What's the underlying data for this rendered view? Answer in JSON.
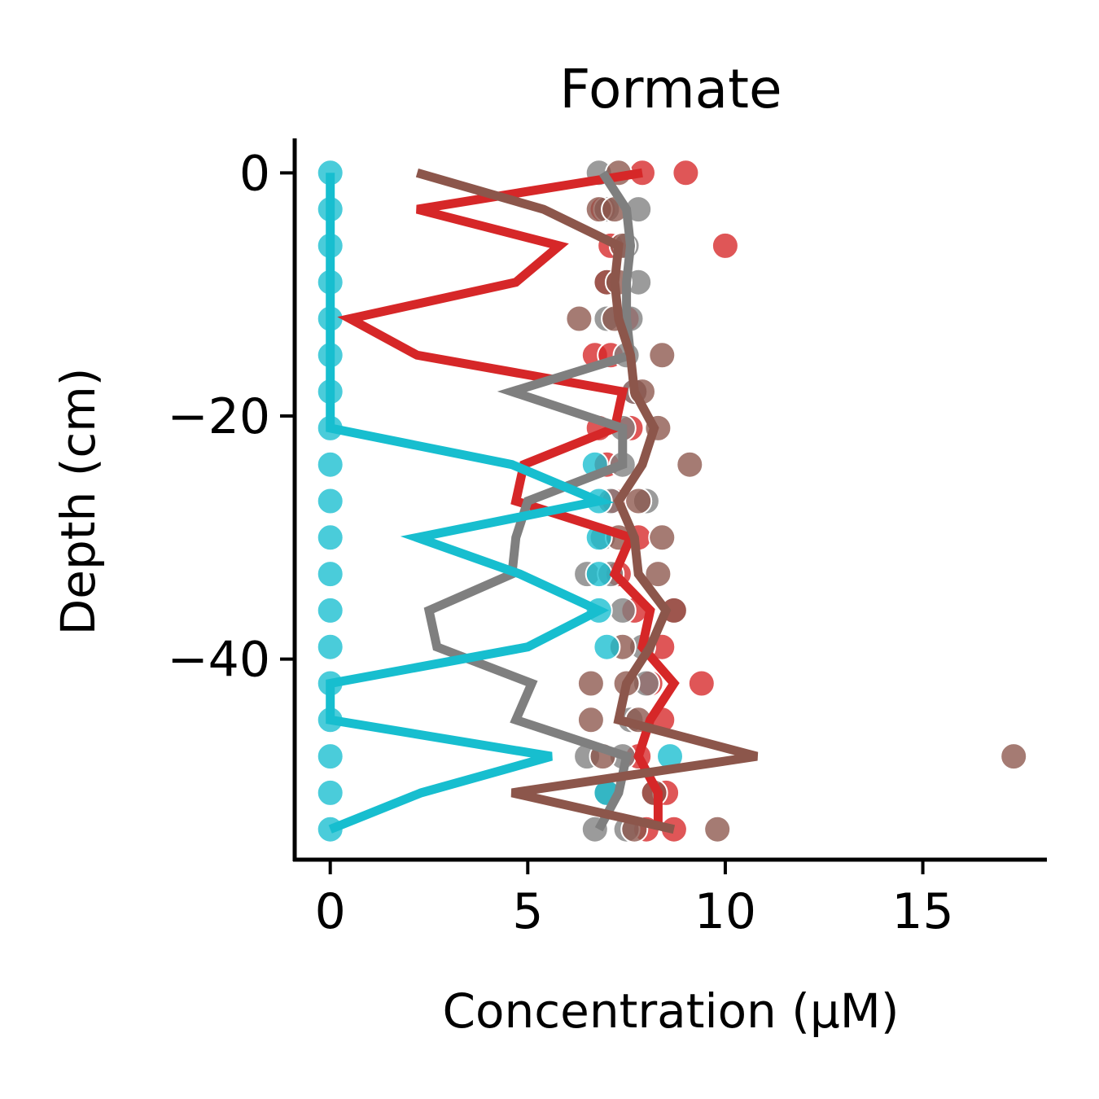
{
  "chart_data": {
    "type": "line",
    "title": "Formate",
    "xlabel": "Concentration (μM)",
    "ylabel": "Depth (cm)",
    "xlim": [
      -0.9,
      18.1
    ],
    "ylim": [
      -56.5,
      2.7
    ],
    "xticks": [
      0,
      5,
      10,
      15
    ],
    "yticks": [
      0,
      -20,
      -40
    ],
    "xtick_labels": [
      "0",
      "5",
      "10",
      "15"
    ],
    "ytick_labels": [
      "0",
      "−20",
      "−40"
    ],
    "grid": false,
    "legend": "none",
    "depths": [
      0,
      -3,
      -6,
      -9,
      -12,
      -15,
      -18,
      -21,
      -24,
      -27,
      -30,
      -33,
      -36,
      -39,
      -42,
      -45,
      -48,
      -51,
      -54
    ],
    "series": [
      {
        "color": "#d62728",
        "line": [
          7.9,
          2.2,
          5.8,
          4.7,
          0.5,
          2.2,
          7.4,
          7.2,
          4.9,
          4.7,
          7.6,
          7.2,
          8.1,
          7.9,
          8.7,
          8.1,
          7.8,
          8.3,
          8.3
        ],
        "points": [
          [
            7.9,
            0
          ],
          [
            9.0,
            0
          ],
          [
            6.9,
            -3
          ],
          [
            10.0,
            -6
          ],
          [
            7.1,
            -6
          ],
          [
            7.0,
            -9
          ],
          [
            7.5,
            -12
          ],
          [
            6.7,
            -15
          ],
          [
            7.1,
            -15
          ],
          [
            7.7,
            -18
          ],
          [
            6.8,
            -21
          ],
          [
            7.6,
            -21
          ],
          [
            7.0,
            -24
          ],
          [
            7.2,
            -27
          ],
          [
            7.8,
            -30
          ],
          [
            7.3,
            -33
          ],
          [
            7.7,
            -36
          ],
          [
            8.7,
            -36
          ],
          [
            8.4,
            -39
          ],
          [
            8.1,
            -42
          ],
          [
            9.4,
            -42
          ],
          [
            8.4,
            -45
          ],
          [
            7.8,
            -48
          ],
          [
            8.2,
            -51
          ],
          [
            8.5,
            -51
          ],
          [
            8.7,
            -54
          ],
          [
            8.0,
            -54
          ]
        ]
      },
      {
        "color": "#7f7f7f",
        "line": [
          6.9,
          7.5,
          7.6,
          7.5,
          7.5,
          7.6,
          4.6,
          7.4,
          7.4,
          5.0,
          4.7,
          4.6,
          2.5,
          2.7,
          5.1,
          4.7,
          7.5,
          7.3,
          6.8
        ],
        "points": [
          [
            6.8,
            0
          ],
          [
            7.0,
            -3
          ],
          [
            7.8,
            -3
          ],
          [
            7.5,
            -6
          ],
          [
            7.8,
            -9
          ],
          [
            7.0,
            -12
          ],
          [
            7.6,
            -12
          ],
          [
            7.5,
            -15
          ],
          [
            7.7,
            -18
          ],
          [
            7.4,
            -21
          ],
          [
            7.4,
            -24
          ],
          [
            8.0,
            -27
          ],
          [
            7.1,
            -27
          ],
          [
            6.9,
            -30
          ],
          [
            6.5,
            -33
          ],
          [
            7.1,
            -33
          ],
          [
            7.4,
            -36
          ],
          [
            7.9,
            -39
          ],
          [
            8.0,
            -42
          ],
          [
            7.6,
            -45
          ],
          [
            6.5,
            -48
          ],
          [
            7.4,
            -48
          ],
          [
            7.0,
            -51
          ],
          [
            6.7,
            -54
          ],
          [
            7.5,
            -54
          ]
        ]
      },
      {
        "color": "#8c564b",
        "line": [
          2.2,
          5.4,
          7.3,
          7.2,
          7.3,
          7.6,
          7.7,
          8.2,
          7.9,
          7.3,
          7.7,
          7.8,
          8.5,
          8.1,
          7.5,
          7.3,
          10.8,
          4.6,
          8.7
        ],
        "points": [
          [
            7.3,
            0
          ],
          [
            6.8,
            -3
          ],
          [
            7.2,
            -3
          ],
          [
            7.4,
            -6
          ],
          [
            7.0,
            -9
          ],
          [
            7.3,
            -9
          ],
          [
            6.3,
            -12
          ],
          [
            7.2,
            -12
          ],
          [
            8.4,
            -15
          ],
          [
            7.9,
            -18
          ],
          [
            8.3,
            -21
          ],
          [
            9.1,
            -24
          ],
          [
            7.8,
            -27
          ],
          [
            8.4,
            -30
          ],
          [
            7.3,
            -30
          ],
          [
            8.3,
            -33
          ],
          [
            8.7,
            -36
          ],
          [
            7.4,
            -39
          ],
          [
            6.6,
            -42
          ],
          [
            7.5,
            -42
          ],
          [
            6.6,
            -45
          ],
          [
            7.8,
            -45
          ],
          [
            17.3,
            -48
          ],
          [
            6.9,
            -48
          ],
          [
            8.2,
            -51
          ],
          [
            9.8,
            -54
          ],
          [
            7.7,
            -54
          ]
        ]
      },
      {
        "color": "#17becf",
        "line": [
          0,
          0,
          0,
          0,
          0,
          0,
          0,
          0,
          4.6,
          6.8,
          2.2,
          4.8,
          6.8,
          5.0,
          0,
          0,
          5.6,
          2.3,
          0
        ],
        "points": [
          [
            0,
            0
          ],
          [
            0,
            -3
          ],
          [
            0,
            -6
          ],
          [
            0,
            -9
          ],
          [
            0,
            -12
          ],
          [
            0,
            -15
          ],
          [
            0,
            -18
          ],
          [
            0,
            -21
          ],
          [
            0,
            -24
          ],
          [
            6.7,
            -24
          ],
          [
            0,
            -27
          ],
          [
            6.8,
            -27
          ],
          [
            0,
            -30
          ],
          [
            6.8,
            -30
          ],
          [
            0,
            -33
          ],
          [
            6.8,
            -33
          ],
          [
            0,
            -36
          ],
          [
            6.8,
            -36
          ],
          [
            0,
            -39
          ],
          [
            7.0,
            -39
          ],
          [
            0,
            -42
          ],
          [
            0,
            -45
          ],
          [
            0,
            -48
          ],
          [
            8.6,
            -48
          ],
          [
            0,
            -51
          ],
          [
            7.0,
            -51
          ],
          [
            0,
            -54
          ]
        ]
      }
    ]
  }
}
